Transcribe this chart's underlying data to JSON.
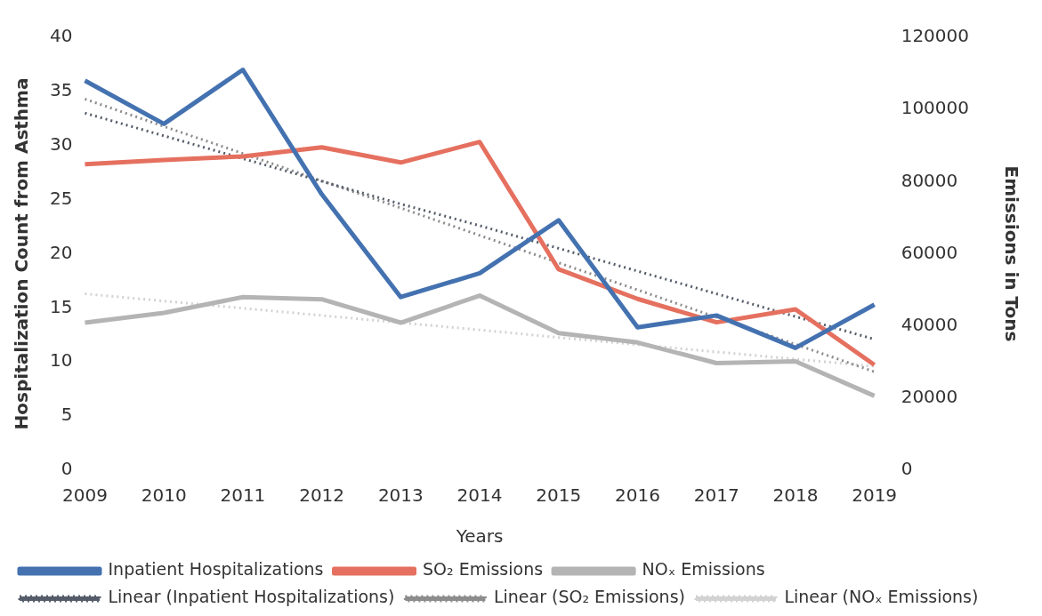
{
  "chart_data": {
    "type": "line",
    "xlabel": "Years",
    "ylabel": "Hospitalization Count from Asthma",
    "y2label": "Emissions in Tons",
    "categories": [
      "2009",
      "2010",
      "2011",
      "2012",
      "2013",
      "2014",
      "2015",
      "2016",
      "2017",
      "2018",
      "2019"
    ],
    "series": [
      {
        "name": "Inpatient Hospitalizations",
        "color": "#4472b0",
        "values": [
          36,
          32,
          37,
          25.5,
          16,
          18.2,
          23.1,
          13.2,
          14.3,
          11.3,
          15.3
        ]
      },
      {
        "name": "SO₂ Emissions",
        "color": "#e5705f",
        "axis": "y2",
        "values": [
          84800,
          86000,
          87000,
          89500,
          85300,
          91000,
          55700,
          47500,
          41000,
          44600,
          29200
        ]
      },
      {
        "name": "NOₓ Emissions",
        "color": "#b4b4b4",
        "axis": "y2",
        "values": [
          40900,
          43600,
          48000,
          47400,
          40900,
          48400,
          38000,
          35400,
          29700,
          30200,
          20600
        ]
      },
      {
        "name": "Linear (Inpatient Hospitalizations)",
        "color": "#555d6a",
        "line_style": "dotted",
        "values": [
          33,
          30.9,
          28.8,
          26.7,
          24.6,
          22.6,
          20.5,
          18.4,
          16.3,
          14.2,
          12.1
        ]
      },
      {
        "name": "Linear (SO₂ Emissions)",
        "color": "#8c8c8c",
        "line_style": "dotted",
        "axis": "y2",
        "values": [
          102900,
          95300,
          87800,
          80200,
          72700,
          65100,
          57500,
          50000,
          42400,
          34900,
          27300
        ]
      },
      {
        "name": "Linear (NOₓ Emissions)",
        "color": "#d2d2d2",
        "line_style": "dotted",
        "axis": "y2",
        "values": [
          48900,
          46900,
          44900,
          42900,
          40900,
          38900,
          36800,
          34800,
          32800,
          30800,
          28800
        ]
      }
    ],
    "ylim": [
      0,
      40
    ],
    "yticks": [
      0,
      5,
      10,
      15,
      20,
      25,
      30,
      35,
      40
    ],
    "y2lim": [
      0,
      120000
    ],
    "y2ticks": [
      0,
      20000,
      40000,
      60000,
      80000,
      100000,
      120000
    ],
    "grid": false,
    "legend": "bottom",
    "marker": "none",
    "line_style": "solid"
  }
}
